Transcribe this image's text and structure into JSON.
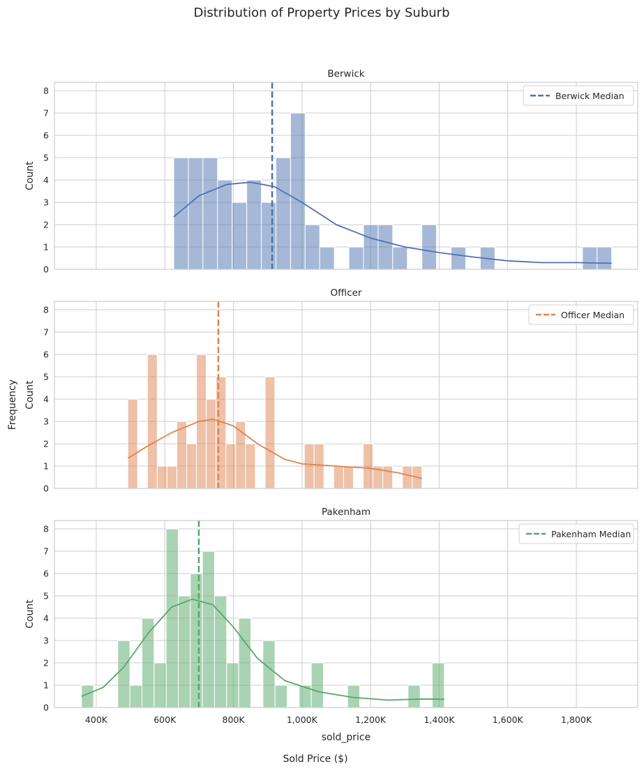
{
  "chart_data": {
    "type": "histogram",
    "title": "Distribution of Property Prices by Suburb",
    "supxlabel": "Sold Price ($)",
    "supylabel": "Frequency",
    "xlabel": "sold_price",
    "ylabel": "Count",
    "xlim": [
      278,
      1979
    ],
    "x_units": "K",
    "xticks": [
      400,
      600,
      800,
      1000,
      1200,
      1400,
      1600,
      1800
    ],
    "xtick_labels": [
      "400K",
      "600K",
      "800K",
      "1,000K",
      "1,200K",
      "1,400K",
      "1,600K",
      "1,800K"
    ],
    "ylim": [
      0,
      8.375
    ],
    "yticks": [
      0,
      1,
      2,
      3,
      4,
      5,
      6,
      7,
      8
    ],
    "grid": true,
    "legend_position": "top-right",
    "panels": [
      {
        "name": "Berwick",
        "color": "#4c72b0",
        "legend": "Berwick Median",
        "median": 913,
        "bin_start": 626,
        "bin_end": 1903,
        "counts": [
          5,
          5,
          5,
          4,
          3,
          4,
          3,
          5,
          7,
          2,
          1,
          0,
          1,
          2,
          2,
          1,
          0,
          2,
          0,
          1,
          0,
          1,
          0,
          0,
          0,
          0,
          0,
          0,
          1,
          1
        ],
        "kde": [
          [
            626,
            2.35
          ],
          [
            700,
            3.3
          ],
          [
            780,
            3.8
          ],
          [
            850,
            3.9
          ],
          [
            920,
            3.7
          ],
          [
            1000,
            3.0
          ],
          [
            1100,
            2.0
          ],
          [
            1200,
            1.4
          ],
          [
            1300,
            1.0
          ],
          [
            1400,
            0.75
          ],
          [
            1500,
            0.55
          ],
          [
            1600,
            0.38
          ],
          [
            1700,
            0.3
          ],
          [
            1800,
            0.3
          ],
          [
            1903,
            0.27
          ]
        ]
      },
      {
        "name": "Officer",
        "color": "#dd8452",
        "legend": "Officer Median",
        "median": 756,
        "bin_start": 492,
        "bin_end": 1350,
        "counts": [
          4,
          0,
          6,
          1,
          1,
          3,
          2,
          6,
          4,
          5,
          2,
          3,
          2,
          0,
          5,
          0,
          0,
          0,
          2,
          2,
          0,
          1,
          1,
          0,
          2,
          1,
          1,
          0,
          1,
          1
        ],
        "kde": [
          [
            492,
            1.35
          ],
          [
            550,
            1.9
          ],
          [
            620,
            2.5
          ],
          [
            700,
            3.0
          ],
          [
            740,
            3.1
          ],
          [
            800,
            2.8
          ],
          [
            870,
            2.0
          ],
          [
            950,
            1.3
          ],
          [
            1000,
            1.1
          ],
          [
            1100,
            1.0
          ],
          [
            1200,
            0.9
          ],
          [
            1280,
            0.7
          ],
          [
            1350,
            0.45
          ]
        ]
      },
      {
        "name": "Pakenham",
        "color": "#55a868",
        "legend": "Pakenham Median",
        "median": 699,
        "bin_start": 357,
        "bin_end": 1415,
        "counts": [
          1,
          0,
          0,
          3,
          1,
          4,
          2,
          8,
          5,
          6,
          7,
          5,
          2,
          4,
          0,
          3,
          1,
          0,
          1,
          2,
          0,
          0,
          1,
          0,
          0,
          0,
          0,
          1,
          0,
          2
        ],
        "kde": [
          [
            357,
            0.5
          ],
          [
            420,
            0.9
          ],
          [
            480,
            1.8
          ],
          [
            550,
            3.3
          ],
          [
            620,
            4.5
          ],
          [
            680,
            4.85
          ],
          [
            740,
            4.6
          ],
          [
            800,
            3.6
          ],
          [
            870,
            2.2
          ],
          [
            950,
            1.2
          ],
          [
            1050,
            0.7
          ],
          [
            1150,
            0.45
          ],
          [
            1250,
            0.33
          ],
          [
            1350,
            0.38
          ],
          [
            1415,
            0.37
          ]
        ]
      }
    ]
  }
}
